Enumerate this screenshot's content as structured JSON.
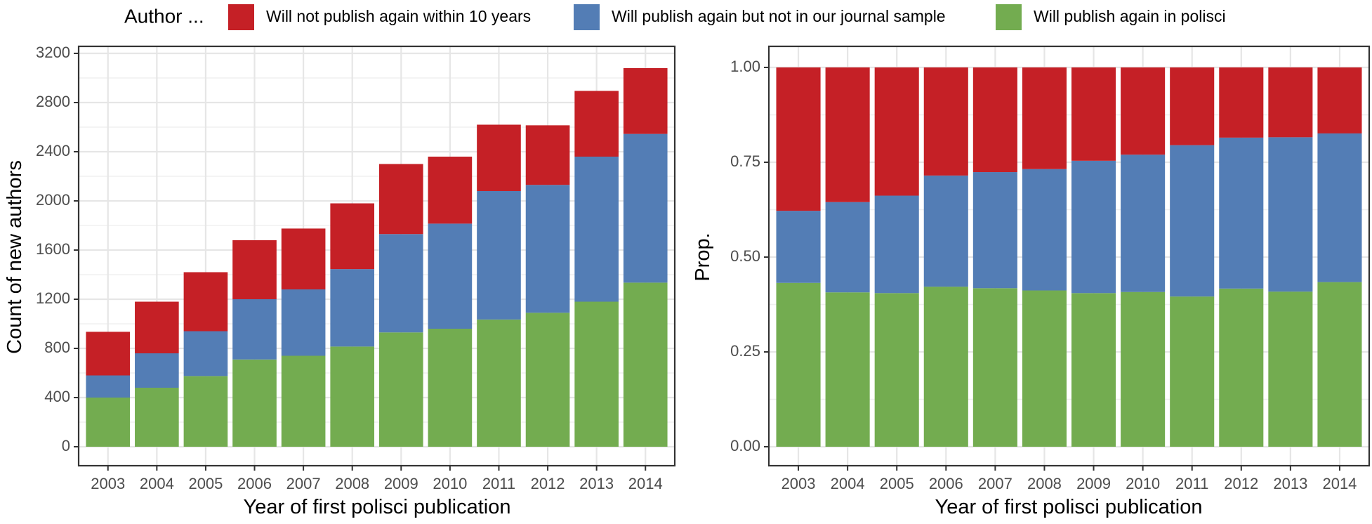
{
  "legend": {
    "title": "Author ...",
    "items": [
      {
        "label": "Will not publish again within 10 years",
        "color": "#c52026"
      },
      {
        "label": "Will publish again but not in our journal sample",
        "color": "#537db5"
      },
      {
        "label": "Will publish again in polisci",
        "color": "#73ac50"
      }
    ]
  },
  "chart_data": [
    {
      "type": "bar",
      "stacked": true,
      "categories": [
        "2003",
        "2004",
        "2005",
        "2006",
        "2007",
        "2008",
        "2009",
        "2010",
        "2011",
        "2012",
        "2013",
        "2014"
      ],
      "series": [
        {
          "name": "Will publish again in polisci",
          "color": "#73ac50",
          "values": [
            400,
            480,
            575,
            710,
            740,
            815,
            930,
            960,
            1035,
            1090,
            1180,
            1335
          ]
        },
        {
          "name": "Will publish again but not in our journal sample",
          "color": "#537db5",
          "values": [
            180,
            280,
            365,
            490,
            540,
            630,
            800,
            855,
            1045,
            1040,
            1180,
            1210
          ]
        },
        {
          "name": "Will not publish again within 10 years",
          "color": "#c52026",
          "values": [
            355,
            420,
            480,
            480,
            495,
            535,
            570,
            545,
            540,
            485,
            535,
            535
          ]
        }
      ],
      "xlabel": "Year of first polisci publication",
      "ylabel": "Count of new authors",
      "ylim": [
        0,
        3200
      ],
      "yticks": [
        "0",
        "400",
        "800",
        "1200",
        "1600",
        "2000",
        "2400",
        "2800",
        "3200"
      ],
      "grid": true
    },
    {
      "type": "bar",
      "stacked": true,
      "categories": [
        "2003",
        "2004",
        "2005",
        "2006",
        "2007",
        "2008",
        "2009",
        "2010",
        "2011",
        "2012",
        "2013",
        "2014"
      ],
      "series": [
        {
          "name": "Will publish again in polisci",
          "color": "#73ac50",
          "values": [
            0.432,
            0.407,
            0.405,
            0.422,
            0.418,
            0.412,
            0.405,
            0.408,
            0.396,
            0.417,
            0.409,
            0.434
          ]
        },
        {
          "name": "Will publish again but not in our journal sample",
          "color": "#537db5",
          "values": [
            0.19,
            0.238,
            0.257,
            0.293,
            0.306,
            0.32,
            0.349,
            0.362,
            0.399,
            0.398,
            0.407,
            0.392
          ]
        },
        {
          "name": "Will not publish again within 10 years",
          "color": "#c52026",
          "values": [
            0.378,
            0.355,
            0.338,
            0.285,
            0.276,
            0.268,
            0.246,
            0.23,
            0.205,
            0.185,
            0.184,
            0.174
          ]
        }
      ],
      "xlabel": "Year of first polisci publication",
      "ylabel": "Prop.",
      "ylim": [
        0,
        1
      ],
      "yticks": [
        "0.00",
        "0.25",
        "0.50",
        "0.75",
        "1.00"
      ],
      "grid": true
    }
  ]
}
